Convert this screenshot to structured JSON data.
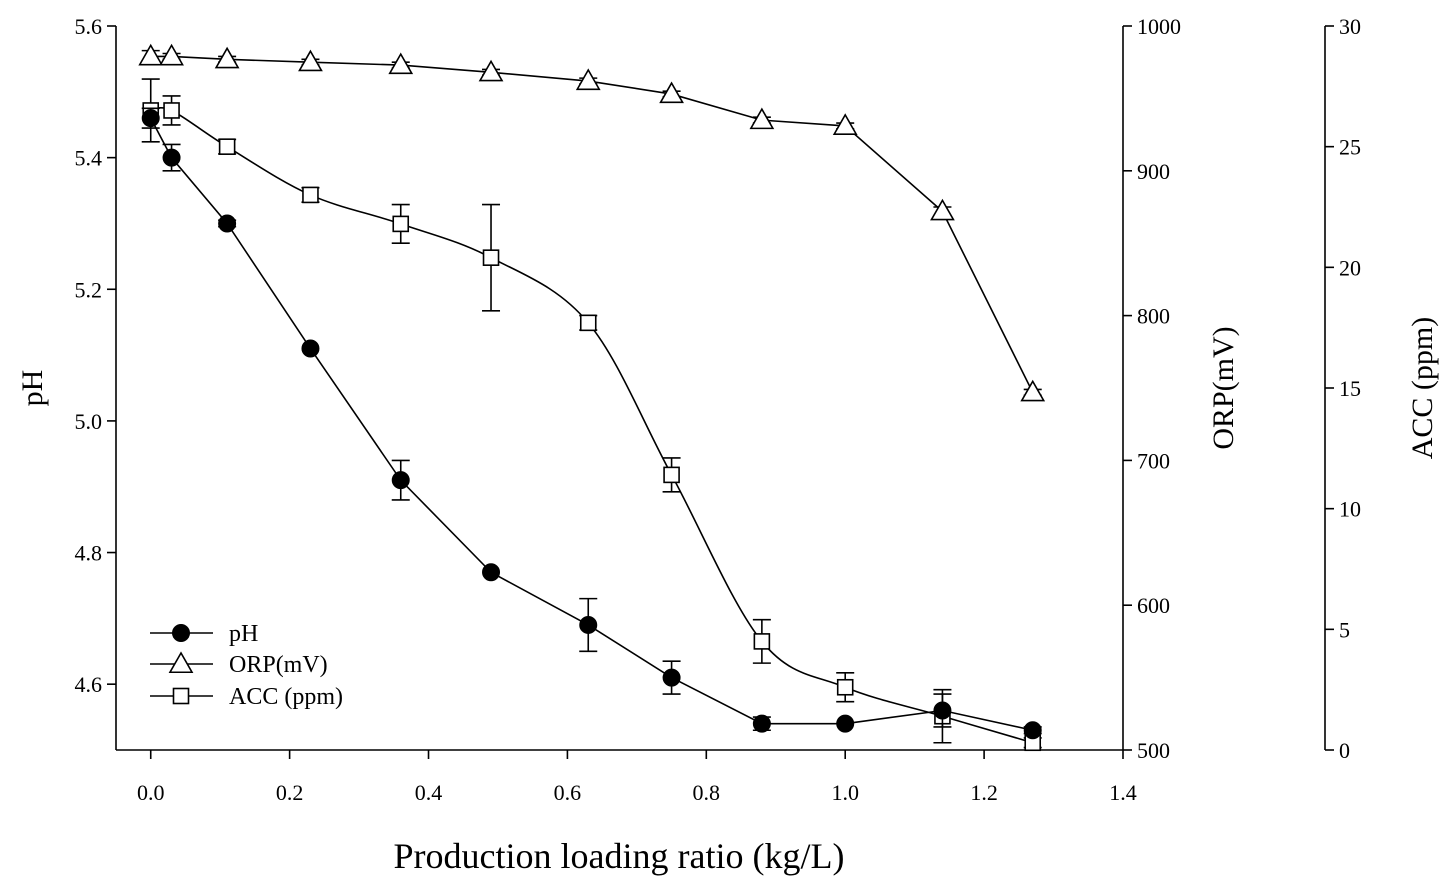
{
  "chart_data": {
    "type": "line",
    "xlabel": "Production loading ratio (kg/L)",
    "xlim": [
      -0.05,
      1.4
    ],
    "xticks": [
      0.0,
      0.2,
      0.4,
      0.6,
      0.8,
      1.0,
      1.2,
      1.4
    ],
    "xtick_labels": [
      "0.0",
      "0.2",
      "0.4",
      "0.6",
      "0.8",
      "1.0",
      "1.2",
      "1.4"
    ],
    "axes": [
      {
        "id": "ph",
        "label": "pH",
        "side": "left",
        "ylim": [
          4.5,
          5.6
        ],
        "ticks": [
          4.6,
          4.8,
          5.0,
          5.2,
          5.4,
          5.6
        ],
        "tick_labels": [
          "4.6",
          "4.8",
          "5.0",
          "5.2",
          "5.4",
          "5.6"
        ]
      },
      {
        "id": "orp",
        "label": "ORP(mV)",
        "side": "right",
        "ylim": [
          500,
          1000
        ],
        "ticks": [
          500,
          600,
          700,
          800,
          900,
          1000
        ],
        "tick_labels": [
          "500",
          "600",
          "700",
          "800",
          "900",
          "1000"
        ]
      },
      {
        "id": "acc",
        "label": "ACC (ppm)",
        "side": "right-outer",
        "ylim": [
          0,
          30
        ],
        "ticks": [
          0,
          5,
          10,
          15,
          20,
          25,
          30
        ],
        "tick_labels": [
          "0",
          "5",
          "10",
          "15",
          "20",
          "25",
          "30"
        ]
      }
    ],
    "series": [
      {
        "name": "pH",
        "axis": "ph",
        "marker": "filled-circle",
        "smooth": false,
        "x": [
          0.0,
          0.03,
          0.11,
          0.23,
          0.36,
          0.49,
          0.63,
          0.75,
          0.88,
          1.0,
          1.14,
          1.27
        ],
        "y": [
          5.46,
          5.4,
          5.3,
          5.11,
          4.91,
          4.77,
          4.69,
          4.61,
          4.54,
          4.54,
          4.56,
          4.53
        ],
        "err": [
          0.015,
          0.02,
          0.005,
          0.0,
          0.03,
          0.0,
          0.04,
          0.025,
          0.01,
          0.0,
          0.025,
          0.005
        ]
      },
      {
        "name": "ORP(mV)",
        "axis": "orp",
        "marker": "open-triangle",
        "smooth": false,
        "x": [
          0.0,
          0.03,
          0.11,
          0.23,
          0.36,
          0.49,
          0.63,
          0.75,
          0.88,
          1.0,
          1.14,
          1.27
        ],
        "y": [
          979,
          979,
          977,
          975,
          973,
          968,
          962,
          953,
          935,
          931,
          872,
          747
        ],
        "err": [
          4,
          2,
          2,
          2,
          2,
          2,
          2,
          2,
          2,
          2,
          3,
          2
        ]
      },
      {
        "name": "ACC (ppm)",
        "axis": "acc",
        "marker": "open-square",
        "smooth": true,
        "x": [
          0.0,
          0.03,
          0.11,
          0.23,
          0.36,
          0.49,
          0.63,
          0.75,
          0.88,
          1.0,
          1.14,
          1.27
        ],
        "y": [
          26.5,
          26.5,
          25.0,
          23.0,
          21.8,
          20.4,
          17.7,
          11.4,
          4.5,
          2.6,
          1.4,
          0.3
        ],
        "err": [
          1.3,
          0.6,
          0.3,
          0.3,
          0.8,
          2.2,
          0.3,
          0.7,
          0.9,
          0.6,
          1.1,
          0.2
        ]
      }
    ],
    "legend": {
      "position": "bottom-left",
      "entries": [
        "pH",
        "ORP(mV)",
        "ACC (ppm)"
      ]
    },
    "grid": false
  }
}
